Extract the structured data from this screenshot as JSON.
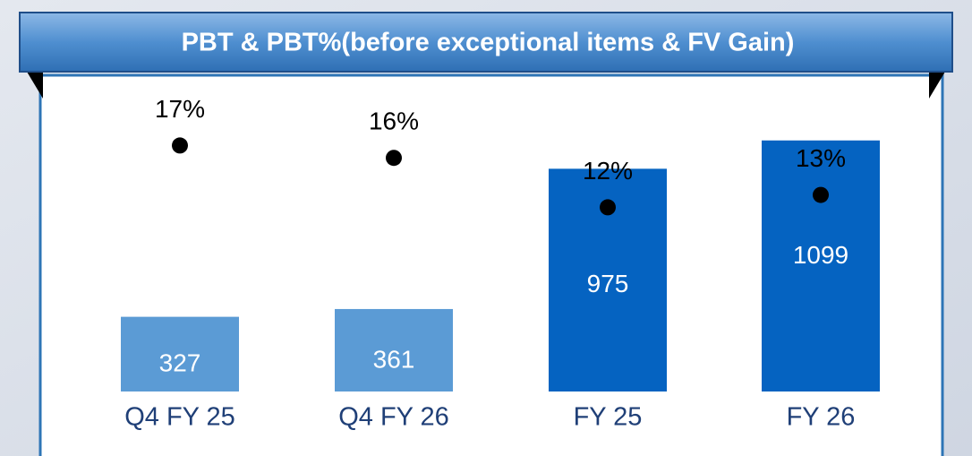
{
  "chart_data": {
    "type": "bar",
    "title": "PBT & PBT%(before exceptional items & FV Gain)",
    "categories": [
      "Q4 FY 25",
      "Q4 FY 26",
      "FY 25",
      "FY 26"
    ],
    "series": [
      {
        "type": "bar",
        "values": [
          327,
          361,
          975,
          1099
        ],
        "colors": [
          "#5b9bd5",
          "#5b9bd5",
          "#0563c1",
          "#0563c1"
        ]
      },
      {
        "type": "scatter",
        "axis": "y2",
        "values": [
          17,
          16,
          12,
          13
        ],
        "value_labels": [
          "17%",
          "16%",
          "12%",
          "13%"
        ],
        "color": "#000000"
      }
    ]
  }
}
